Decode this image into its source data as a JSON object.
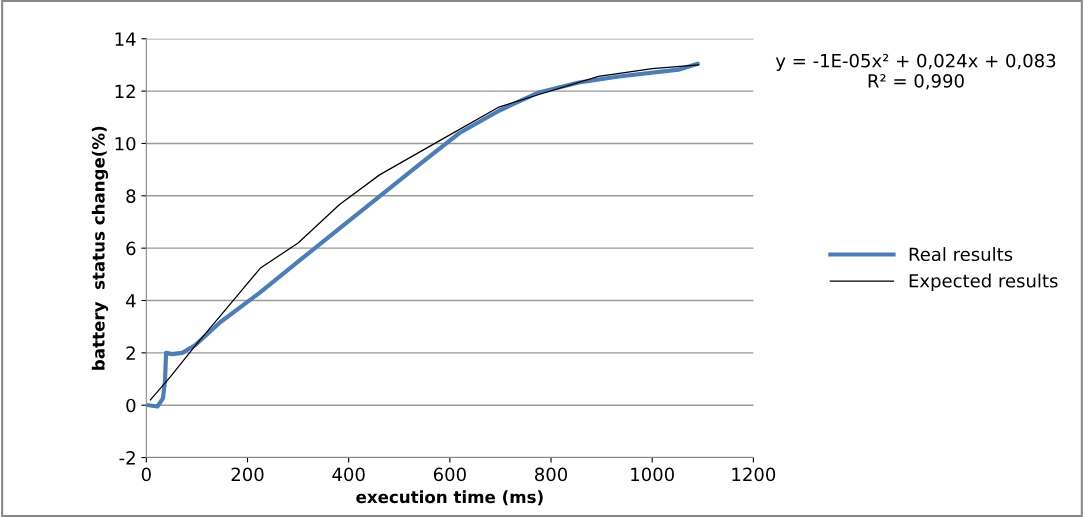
{
  "chart_data": {
    "type": "line",
    "xlabel": "execution time (ms)",
    "ylabel": "battery  status change(%)",
    "xlim": [
      0,
      1200
    ],
    "xticks": [
      0,
      200,
      400,
      600,
      800,
      1000,
      1200
    ],
    "ylim": [
      -2,
      14
    ],
    "yticks": [
      -2,
      0,
      2,
      4,
      6,
      8,
      10,
      12,
      14
    ],
    "grid": "y",
    "legend": "right",
    "annotations": [
      "y = -1E-05x² + 0,024x + 0,083\nR² = 0,990"
    ],
    "series": [
      {
        "name": "Real results",
        "color": "#4a7ebb",
        "x": [
          4,
          22,
          33,
          37,
          39,
          51,
          71,
          97,
          146,
          225,
          303,
          382,
          461,
          540,
          619,
          698,
          776,
          855,
          934,
          1052,
          1090
        ],
        "values": [
          0,
          -0.05,
          0.27,
          0.95,
          2.0,
          1.95,
          2.0,
          2.3,
          3.17,
          4.31,
          5.53,
          6.76,
          7.98,
          9.2,
          10.4,
          11.26,
          11.95,
          12.33,
          12.56,
          12.82,
          13.05
        ]
      },
      {
        "name": "Expected results",
        "color": "#000000",
        "x": [
          8,
          47,
          100,
          150,
          225,
          300,
          382,
          461,
          579,
          698,
          776,
          894,
          1000,
          1092
        ],
        "values": [
          0.2,
          1.07,
          2.35,
          3.5,
          5.23,
          6.2,
          7.67,
          8.8,
          10.1,
          11.4,
          11.87,
          12.56,
          12.86,
          13.0
        ]
      }
    ]
  }
}
